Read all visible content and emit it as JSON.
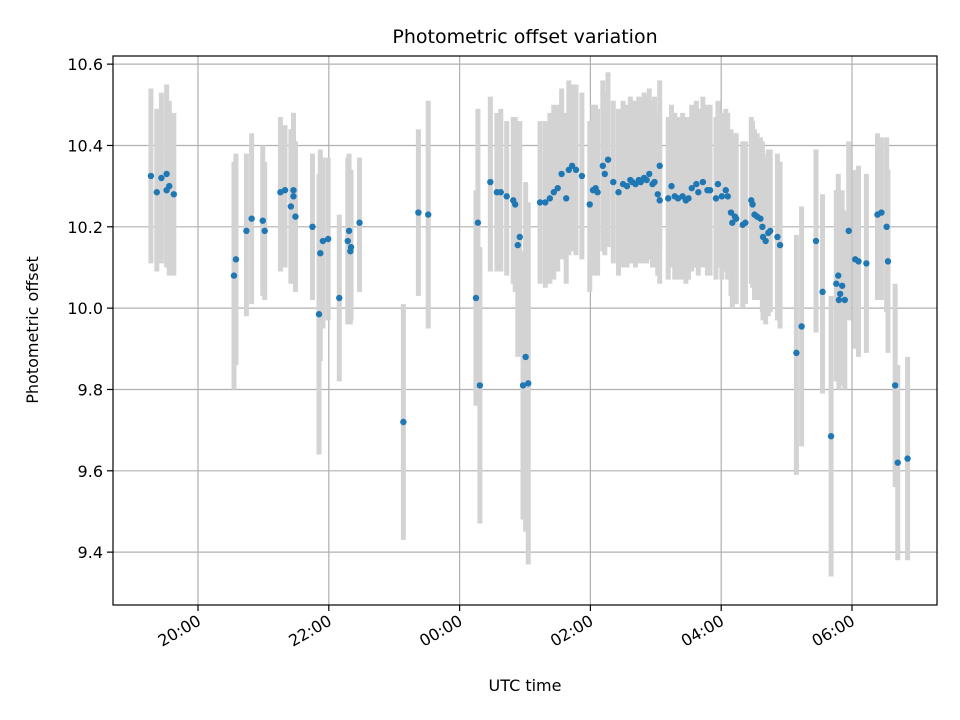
{
  "chart_data": {
    "type": "scatter",
    "title": "Photometric offset variation",
    "xlabel": "UTC time",
    "ylabel": "Photometric offset",
    "x_unit": "hours (UTC clock, past midnight continues above 24)",
    "xlim": [
      18.7,
      31.3
    ],
    "ylim": [
      9.27,
      10.62
    ],
    "xticks": [
      {
        "value": 20,
        "label": "20:00"
      },
      {
        "value": 22,
        "label": "22:00"
      },
      {
        "value": 24,
        "label": "00:00"
      },
      {
        "value": 26,
        "label": "02:00"
      },
      {
        "value": 28,
        "label": "04:00"
      },
      {
        "value": 30,
        "label": "06:00"
      }
    ],
    "yticks": [
      {
        "value": 9.4,
        "label": "9.4"
      },
      {
        "value": 9.6,
        "label": "9.6"
      },
      {
        "value": 9.8,
        "label": "9.8"
      },
      {
        "value": 10.0,
        "label": "10.0"
      },
      {
        "value": 10.2,
        "label": "10.2"
      },
      {
        "value": 10.4,
        "label": "10.4"
      },
      {
        "value": 10.6,
        "label": "10.6"
      }
    ],
    "grid": true,
    "colors": {
      "point": "#1f77b4",
      "errorbar": "#d3d3d3",
      "grid": "#b0b0b0"
    },
    "points": [
      [
        19.28,
        10.325,
        10.11,
        10.54
      ],
      [
        19.37,
        10.285,
        10.09,
        10.49
      ],
      [
        19.44,
        10.32,
        10.11,
        10.53
      ],
      [
        19.52,
        10.33,
        10.12,
        10.55
      ],
      [
        19.56,
        10.3,
        10.08,
        10.51
      ],
      [
        19.52,
        10.29,
        10.1,
        10.48
      ],
      [
        19.63,
        10.28,
        10.08,
        10.48
      ],
      [
        20.55,
        10.08,
        9.8,
        10.36
      ],
      [
        20.58,
        10.12,
        9.86,
        10.38
      ],
      [
        20.74,
        10.19,
        9.98,
        10.38
      ],
      [
        20.82,
        10.22,
        10.01,
        10.43
      ],
      [
        20.99,
        10.215,
        10.03,
        10.4
      ],
      [
        21.02,
        10.19,
        10.02,
        10.36
      ],
      [
        21.26,
        10.285,
        10.09,
        10.47
      ],
      [
        21.33,
        10.29,
        10.1,
        10.45
      ],
      [
        21.42,
        10.25,
        10.06,
        10.44
      ],
      [
        21.46,
        10.29,
        10.09,
        10.48
      ],
      [
        21.49,
        10.225,
        10.04,
        10.41
      ],
      [
        21.46,
        10.275,
        10.07,
        10.48
      ],
      [
        21.75,
        10.2,
        10.02,
        10.38
      ],
      [
        21.85,
        9.985,
        9.64,
        10.33
      ],
      [
        21.87,
        10.135,
        9.87,
        10.39
      ],
      [
        21.91,
        10.165,
        9.95,
        10.37
      ],
      [
        21.99,
        10.17,
        9.97,
        10.37
      ],
      [
        22.16,
        10.025,
        9.82,
        10.23
      ],
      [
        22.29,
        10.165,
        9.96,
        10.37
      ],
      [
        22.31,
        10.19,
        9.96,
        10.38
      ],
      [
        22.33,
        10.14,
        9.96,
        10.33
      ],
      [
        22.34,
        10.15,
        9.97,
        10.34
      ],
      [
        22.47,
        10.21,
        10.04,
        10.37
      ],
      [
        23.14,
        9.72,
        9.43,
        10.01
      ],
      [
        23.37,
        10.235,
        10.03,
        10.44
      ],
      [
        23.52,
        10.23,
        9.95,
        10.51
      ],
      [
        24.25,
        10.025,
        9.76,
        10.29
      ],
      [
        24.28,
        10.21,
        9.93,
        10.49
      ],
      [
        24.31,
        9.81,
        9.47,
        10.15
      ],
      [
        24.47,
        10.31,
        10.09,
        10.52
      ],
      [
        24.57,
        10.285,
        10.09,
        10.48
      ],
      [
        24.63,
        10.285,
        10.09,
        10.49
      ],
      [
        24.72,
        10.275,
        10.08,
        10.46
      ],
      [
        24.82,
        10.265,
        10.06,
        10.47
      ],
      [
        24.85,
        10.255,
        10.04,
        10.47
      ],
      [
        24.89,
        10.155,
        9.88,
        10.43
      ],
      [
        24.92,
        10.175,
        9.89,
        10.46
      ],
      [
        24.97,
        9.81,
        9.48,
        10.14
      ],
      [
        25.01,
        9.88,
        9.45,
        10.31
      ],
      [
        25.05,
        9.815,
        9.37,
        10.26
      ],
      [
        25.23,
        10.26,
        10.06,
        10.46
      ],
      [
        25.31,
        10.26,
        10.05,
        10.46
      ],
      [
        25.38,
        10.27,
        10.06,
        10.48
      ],
      [
        25.44,
        10.285,
        10.07,
        10.5
      ],
      [
        25.5,
        10.295,
        10.09,
        10.5
      ],
      [
        25.56,
        10.33,
        10.12,
        10.54
      ],
      [
        25.63,
        10.27,
        10.06,
        10.48
      ],
      [
        25.67,
        10.34,
        10.13,
        10.56
      ],
      [
        25.72,
        10.35,
        10.14,
        10.55
      ],
      [
        25.78,
        10.34,
        10.13,
        10.55
      ],
      [
        25.87,
        10.325,
        10.12,
        10.53
      ],
      [
        25.99,
        10.255,
        10.04,
        10.46
      ],
      [
        26.04,
        10.29,
        10.08,
        10.5
      ],
      [
        26.08,
        10.295,
        10.09,
        10.5
      ],
      [
        26.11,
        10.285,
        10.08,
        10.49
      ],
      [
        26.19,
        10.35,
        10.14,
        10.56
      ],
      [
        26.22,
        10.33,
        10.13,
        10.53
      ],
      [
        26.27,
        10.365,
        10.15,
        10.58
      ],
      [
        26.35,
        10.31,
        10.11,
        10.51
      ],
      [
        26.43,
        10.285,
        10.08,
        10.49
      ],
      [
        26.5,
        10.305,
        10.1,
        10.51
      ],
      [
        26.56,
        10.3,
        10.1,
        10.5
      ],
      [
        26.61,
        10.315,
        10.11,
        10.52
      ],
      [
        26.64,
        10.31,
        10.11,
        10.51
      ],
      [
        26.69,
        10.305,
        10.1,
        10.51
      ],
      [
        26.74,
        10.315,
        10.11,
        10.52
      ],
      [
        26.77,
        10.31,
        10.11,
        10.51
      ],
      [
        26.82,
        10.32,
        10.11,
        10.53
      ],
      [
        26.86,
        10.315,
        10.11,
        10.52
      ],
      [
        26.9,
        10.33,
        10.12,
        10.54
      ],
      [
        26.95,
        10.305,
        10.1,
        10.51
      ],
      [
        26.98,
        10.31,
        10.1,
        10.52
      ],
      [
        27.03,
        10.28,
        10.08,
        10.48
      ],
      [
        27.06,
        10.35,
        10.14,
        10.56
      ],
      [
        27.06,
        10.265,
        10.06,
        10.47
      ],
      [
        27.19,
        10.27,
        10.07,
        10.47
      ],
      [
        27.24,
        10.3,
        10.1,
        10.5
      ],
      [
        27.29,
        10.275,
        10.07,
        10.48
      ],
      [
        27.34,
        10.27,
        10.07,
        10.47
      ],
      [
        27.41,
        10.275,
        10.07,
        10.48
      ],
      [
        27.46,
        10.265,
        10.06,
        10.47
      ],
      [
        27.5,
        10.27,
        10.07,
        10.47
      ],
      [
        27.55,
        10.295,
        10.09,
        10.5
      ],
      [
        27.62,
        10.305,
        10.1,
        10.51
      ],
      [
        27.65,
        10.285,
        10.08,
        10.49
      ],
      [
        27.72,
        10.31,
        10.1,
        10.52
      ],
      [
        27.79,
        10.29,
        10.08,
        10.5
      ],
      [
        27.83,
        10.29,
        10.08,
        10.5
      ],
      [
        27.92,
        10.27,
        10.07,
        10.47
      ],
      [
        27.95,
        10.305,
        10.1,
        10.51
      ],
      [
        28.01,
        10.275,
        10.07,
        10.48
      ],
      [
        28.07,
        10.29,
        10.09,
        10.49
      ],
      [
        28.1,
        10.275,
        10.07,
        10.48
      ],
      [
        28.15,
        10.235,
        10.03,
        10.44
      ],
      [
        28.17,
        10.21,
        10.0,
        10.42
      ],
      [
        28.21,
        10.225,
        10.02,
        10.43
      ],
      [
        28.23,
        10.22,
        10.01,
        10.43
      ],
      [
        28.33,
        10.205,
        10.0,
        10.41
      ],
      [
        28.37,
        10.21,
        10.01,
        10.41
      ],
      [
        28.46,
        10.265,
        10.06,
        10.47
      ],
      [
        28.48,
        10.255,
        10.05,
        10.46
      ],
      [
        28.51,
        10.23,
        10.02,
        10.44
      ],
      [
        28.55,
        10.225,
        10.02,
        10.43
      ],
      [
        28.6,
        10.22,
        10.02,
        10.42
      ],
      [
        28.63,
        10.2,
        9.99,
        10.41
      ],
      [
        28.64,
        10.175,
        9.97,
        10.38
      ],
      [
        28.68,
        10.165,
        9.96,
        10.37
      ],
      [
        28.72,
        10.185,
        9.98,
        10.39
      ],
      [
        28.75,
        10.19,
        9.99,
        10.39
      ],
      [
        28.86,
        10.175,
        9.97,
        10.38
      ],
      [
        28.9,
        10.155,
        9.95,
        10.36
      ],
      [
        29.15,
        9.89,
        9.59,
        10.18
      ],
      [
        29.23,
        9.955,
        9.66,
        10.25
      ],
      [
        29.45,
        10.165,
        9.94,
        10.39
      ],
      [
        29.55,
        10.04,
        9.79,
        10.28
      ],
      [
        29.68,
        9.685,
        9.34,
        10.03
      ],
      [
        29.76,
        10.06,
        9.82,
        10.29
      ],
      [
        29.79,
        10.08,
        9.84,
        10.33
      ],
      [
        29.8,
        10.02,
        9.8,
        10.25
      ],
      [
        29.82,
        10.035,
        9.81,
        10.26
      ],
      [
        29.85,
        10.055,
        9.82,
        10.29
      ],
      [
        29.89,
        10.02,
        9.8,
        10.24
      ],
      [
        29.95,
        10.19,
        9.97,
        10.41
      ],
      [
        30.05,
        10.12,
        9.9,
        10.34
      ],
      [
        30.1,
        10.115,
        9.88,
        10.35
      ],
      [
        30.22,
        10.11,
        9.89,
        10.33
      ],
      [
        30.39,
        10.23,
        10.02,
        10.43
      ],
      [
        30.45,
        10.235,
        10.02,
        10.42
      ],
      [
        30.53,
        10.2,
        9.99,
        10.42
      ],
      [
        30.55,
        10.115,
        9.89,
        10.34
      ],
      [
        30.66,
        9.81,
        9.56,
        10.06
      ],
      [
        30.7,
        9.62,
        9.38,
        9.86
      ],
      [
        30.85,
        9.63,
        9.38,
        9.88
      ]
    ]
  }
}
